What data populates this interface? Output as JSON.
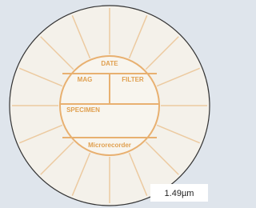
{
  "labels": {
    "date": "DATE",
    "mag": "MAG",
    "filter": "FILTER",
    "specimen": "SPECIMEN",
    "footer": "Microrecorder"
  },
  "scale_bar": {
    "label": "1.49µm"
  }
}
